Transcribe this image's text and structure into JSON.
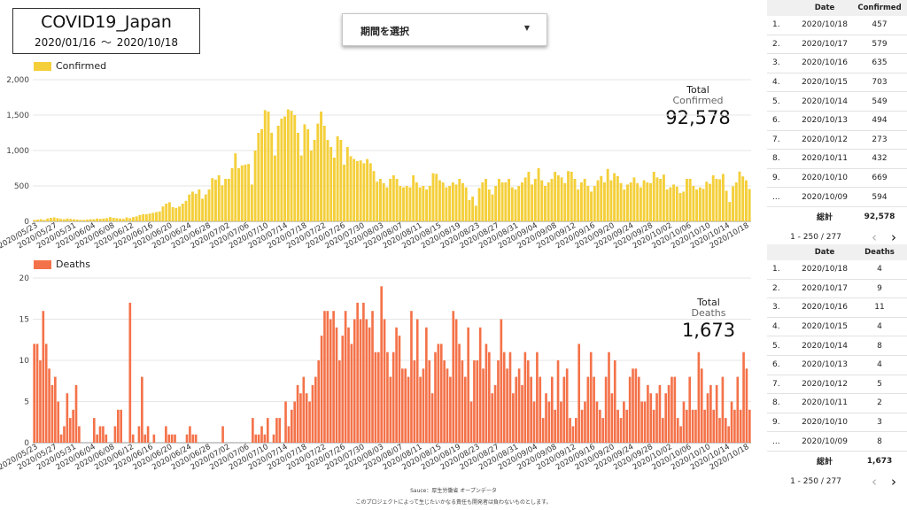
{
  "title": {
    "main": "COVID19_Japan",
    "range": "2020/01/16 〜 2020/10/18"
  },
  "period_selector": {
    "label": "期間を選択",
    "caret_icon": "dropdown-caret-icon"
  },
  "confirmed_section": {
    "legend": "Confirmed",
    "color": "#f4cf3a",
    "total_label": "Total",
    "total_sub": "Confirmed",
    "total_value": "92,578"
  },
  "deaths_section": {
    "legend": "Deaths",
    "color": "#f47249",
    "total_label": "Total",
    "total_sub": "Deaths",
    "total_value": "1,673"
  },
  "chart_data": [
    {
      "type": "bar",
      "title": "",
      "series": [
        {
          "name": "Confirmed",
          "color": "#f4cf3a"
        }
      ],
      "ylim": [
        0,
        2000
      ],
      "yticks": [
        "0",
        "500",
        "1,000",
        "1,500",
        "2,000"
      ],
      "ytick_values": [
        0,
        500,
        1000,
        1500,
        2000
      ],
      "grid": true,
      "legend_position": "top-left",
      "x_tick_labels": [
        "2020/05/23",
        "2020/05/27",
        "2020/05/31",
        "2020/06/04",
        "2020/06/08",
        "2020/06/12",
        "2020/06/16",
        "2020/06/20",
        "2020/06/24",
        "2020/06/28",
        "2020/07/02",
        "2020/07/06",
        "2020/07/10",
        "2020/07/14",
        "2020/07/18",
        "2020/07/22",
        "2020/07/26",
        "2020/07/30",
        "2020/08/03",
        "2020/08/07",
        "2020/08/11",
        "2020/08/15",
        "2020/08/19",
        "2020/08/23",
        "2020/08/27",
        "2020/08/31",
        "2020/09/04",
        "2020/09/08",
        "2020/09/12",
        "2020/09/16",
        "2020/09/20",
        "2020/09/24",
        "2020/09/28",
        "2020/10/02",
        "2020/10/06",
        "2020/10/10",
        "2020/10/14",
        "2020/10/18"
      ],
      "x_start": "2020/05/23",
      "x_end": "2020/10/18",
      "values": [
        20,
        25,
        30,
        20,
        40,
        50,
        55,
        45,
        35,
        30,
        40,
        35,
        30,
        25,
        20,
        20,
        25,
        30,
        30,
        40,
        35,
        40,
        45,
        60,
        50,
        45,
        40,
        35,
        55,
        45,
        60,
        70,
        90,
        100,
        100,
        110,
        120,
        130,
        140,
        210,
        250,
        270,
        200,
        190,
        210,
        250,
        290,
        380,
        420,
        390,
        450,
        320,
        380,
        450,
        610,
        590,
        650,
        510,
        600,
        600,
        750,
        960,
        750,
        790,
        800,
        810,
        520,
        1000,
        1250,
        1300,
        1570,
        1550,
        1250,
        930,
        1350,
        1450,
        1480,
        1580,
        1560,
        1500,
        1250,
        930,
        1370,
        1300,
        1000,
        1150,
        1380,
        1550,
        1350,
        1150,
        1050,
        900,
        1200,
        1150,
        800,
        1050,
        920,
        880,
        850,
        860,
        820,
        880,
        820,
        710,
        560,
        600,
        540,
        480,
        600,
        650,
        600,
        500,
        480,
        500,
        480,
        650,
        550,
        480,
        500,
        450,
        500,
        680,
        670,
        580,
        550,
        480,
        500,
        550,
        520,
        600,
        540,
        480,
        300,
        350,
        220,
        470,
        550,
        600,
        450,
        380,
        500,
        600,
        550,
        550,
        600,
        480,
        450,
        500,
        550,
        620,
        700,
        520,
        600,
        750,
        580,
        500,
        550,
        600,
        700,
        650,
        620,
        540,
        710,
        700,
        600,
        450,
        550,
        600,
        500,
        420,
        500,
        580,
        640,
        550,
        740,
        580,
        680,
        640,
        540,
        450,
        520,
        550,
        620,
        540,
        480,
        580,
        550,
        540,
        700,
        620,
        600,
        660,
        450,
        480,
        520,
        490,
        400,
        420,
        600,
        600,
        500,
        450,
        480,
        460,
        560,
        530,
        650,
        600,
        594,
        669,
        432,
        273,
        494,
        549,
        703,
        635,
        579,
        457
      ]
    },
    {
      "type": "bar",
      "title": "",
      "series": [
        {
          "name": "Deaths",
          "color": "#f47249"
        }
      ],
      "ylim": [
        0,
        20
      ],
      "yticks": [
        "0",
        "5",
        "10",
        "15",
        "20"
      ],
      "ytick_values": [
        0,
        5,
        10,
        15,
        20
      ],
      "grid": true,
      "legend_position": "top-left",
      "x_tick_labels": [
        "2020/05/23",
        "2020/05/27",
        "2020/05/31",
        "2020/06/04",
        "2020/06/08",
        "2020/06/12",
        "2020/06/16",
        "2020/06/20",
        "2020/06/24",
        "2020/06/28",
        "2020/07/02",
        "2020/07/06",
        "2020/07/10",
        "2020/07/14",
        "2020/07/18",
        "2020/07/22",
        "2020/07/26",
        "2020/07/30",
        "2020/08/03",
        "2020/08/07",
        "2020/08/11",
        "2020/08/15",
        "2020/08/19",
        "2020/08/23",
        "2020/08/27",
        "2020/08/31",
        "2020/09/04",
        "2020/09/08",
        "2020/09/12",
        "2020/09/16",
        "2020/09/20",
        "2020/09/24",
        "2020/09/28",
        "2020/10/02",
        "2020/10/06",
        "2020/10/10",
        "2020/10/14",
        "2020/10/18"
      ],
      "x_start": "2020/05/23",
      "x_end": "2020/10/18",
      "values": [
        12,
        12,
        10,
        16,
        12,
        9,
        7,
        8,
        5,
        1,
        2,
        6,
        3,
        4,
        7,
        2,
        0,
        0,
        0,
        0,
        3,
        1,
        2,
        2,
        1,
        0,
        0,
        2,
        4,
        4,
        0,
        0,
        17,
        1,
        0,
        2,
        8,
        1,
        2,
        0,
        1,
        0,
        0,
        0,
        2,
        1,
        1,
        1,
        0,
        0,
        0,
        1,
        2,
        1,
        1,
        0,
        0,
        0,
        0,
        0,
        0,
        0,
        0,
        2,
        0,
        0,
        0,
        0,
        0,
        0,
        0,
        0,
        0,
        3,
        1,
        1,
        2,
        1,
        3,
        0,
        1,
        3,
        3,
        0,
        5,
        2,
        4,
        5,
        7,
        6,
        8,
        6,
        5,
        7,
        8,
        10,
        13,
        16,
        16,
        15,
        16,
        14,
        10,
        13,
        16,
        14,
        12,
        15,
        17,
        15,
        17,
        15,
        14,
        16,
        11,
        11,
        19,
        15,
        11,
        8,
        11,
        14,
        13,
        9,
        9,
        8,
        16,
        10,
        15,
        8,
        9,
        14,
        10,
        6,
        11,
        12,
        12,
        10,
        9,
        8,
        16,
        15,
        12,
        10,
        8,
        14,
        5,
        10,
        10,
        14,
        9,
        12,
        11,
        6,
        7,
        10,
        15,
        11,
        9,
        11,
        6,
        8,
        9,
        7,
        11,
        10,
        8,
        5,
        11,
        8,
        3,
        6,
        5,
        8,
        4,
        10,
        5,
        8,
        9,
        3,
        2,
        3,
        12,
        4,
        5,
        8,
        11,
        8,
        5,
        4,
        3,
        8,
        11,
        6,
        10,
        4,
        3,
        5,
        4,
        8,
        9,
        9,
        8,
        5,
        5,
        7,
        6,
        4,
        6,
        7,
        3,
        6,
        7,
        8,
        8,
        3,
        2,
        5,
        4,
        8,
        4,
        4,
        11,
        9,
        4,
        6,
        7,
        4,
        7,
        3,
        8,
        3,
        2,
        5,
        4,
        8,
        4,
        11,
        9,
        4
      ]
    }
  ],
  "confirmed_table": {
    "headers": [
      "Date",
      "Confirmed"
    ],
    "rows": [
      [
        "1.",
        "2020/10/18",
        "457"
      ],
      [
        "2.",
        "2020/10/17",
        "579"
      ],
      [
        "3.",
        "2020/10/16",
        "635"
      ],
      [
        "4.",
        "2020/10/15",
        "703"
      ],
      [
        "5.",
        "2020/10/14",
        "549"
      ],
      [
        "6.",
        "2020/10/13",
        "494"
      ],
      [
        "7.",
        "2020/10/12",
        "273"
      ],
      [
        "8.",
        "2020/10/11",
        "432"
      ],
      [
        "9.",
        "2020/10/10",
        "669"
      ],
      [
        "...",
        "2020/10/09",
        "594"
      ]
    ],
    "total_label": "総計",
    "total_value": "92,578",
    "pager": "1 - 250 / 277"
  },
  "deaths_table": {
    "headers": [
      "Date",
      "Deaths"
    ],
    "rows": [
      [
        "1.",
        "2020/10/18",
        "4"
      ],
      [
        "2.",
        "2020/10/17",
        "9"
      ],
      [
        "3.",
        "2020/10/16",
        "11"
      ],
      [
        "4.",
        "2020/10/15",
        "4"
      ],
      [
        "5.",
        "2020/10/14",
        "8"
      ],
      [
        "6.",
        "2020/10/13",
        "4"
      ],
      [
        "7.",
        "2020/10/12",
        "5"
      ],
      [
        "8.",
        "2020/10/11",
        "2"
      ],
      [
        "9.",
        "2020/10/10",
        "3"
      ],
      [
        "...",
        "2020/10/09",
        "8"
      ]
    ],
    "total_label": "総計",
    "total_value": "1,673",
    "pager": "1 - 250 / 277"
  },
  "pager_icons": {
    "prev": "‹",
    "next": "›"
  },
  "footer": {
    "source": "Sauce：厚生労働省 オープンデータ",
    "disclaimer": "このプロジェクトによって生じたいかなる責任も開発者は負わないものとします。"
  }
}
